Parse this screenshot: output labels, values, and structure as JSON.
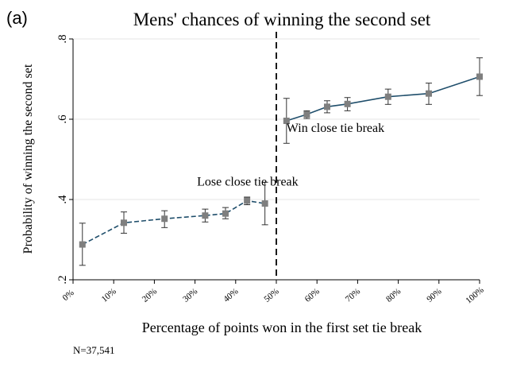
{
  "panel_label": "(a)",
  "note": "N=37,541",
  "chart_data": {
    "type": "line",
    "title": "Mens' chances of winning the second set",
    "xlabel": "Percentage of points won in the first set tie break",
    "ylabel": "Probability of winning the second set",
    "xlim": [
      0,
      100
    ],
    "ylim": [
      0.2,
      0.8
    ],
    "x_ticks": [
      0,
      10,
      20,
      30,
      40,
      50,
      60,
      70,
      80,
      90,
      100
    ],
    "x_tick_labels": [
      "0%",
      "10%",
      "20%",
      "30%",
      "40%",
      "50%",
      "60%",
      "70%",
      "80%",
      "90%",
      "100%"
    ],
    "y_ticks": [
      0.2,
      0.4,
      0.6,
      0.8
    ],
    "y_tick_labels": [
      ".2",
      ".4",
      ".6",
      ".8"
    ],
    "grid": "horizontal",
    "cutoff_x": 50,
    "series": [
      {
        "name": "Lose close tie break",
        "x": [
          2.3,
          12.5,
          22.5,
          32.5,
          37.5,
          42.8,
          47.2
        ],
        "y": [
          0.288,
          0.342,
          0.352,
          0.36,
          0.365,
          0.397,
          0.39
        ],
        "ci_low": [
          0.236,
          0.316,
          0.33,
          0.344,
          0.352,
          0.387,
          0.337
        ],
        "ci_high": [
          0.341,
          0.369,
          0.372,
          0.376,
          0.38,
          0.406,
          0.443
        ]
      },
      {
        "name": "Win close tie break",
        "x": [
          52.5,
          57.5,
          62.5,
          67.5,
          77.5,
          87.5,
          100
        ],
        "y": [
          0.596,
          0.612,
          0.631,
          0.638,
          0.656,
          0.664,
          0.706
        ],
        "ci_low": [
          0.54,
          0.602,
          0.616,
          0.621,
          0.637,
          0.637,
          0.659
        ],
        "ci_high": [
          0.652,
          0.621,
          0.646,
          0.654,
          0.675,
          0.69,
          0.753
        ]
      }
    ],
    "annotations": [
      {
        "text": "Lose close tie break",
        "x": 30.5,
        "y": 0.435
      },
      {
        "text": "Win close tie break",
        "x": 52.5,
        "y": 0.568
      }
    ]
  }
}
